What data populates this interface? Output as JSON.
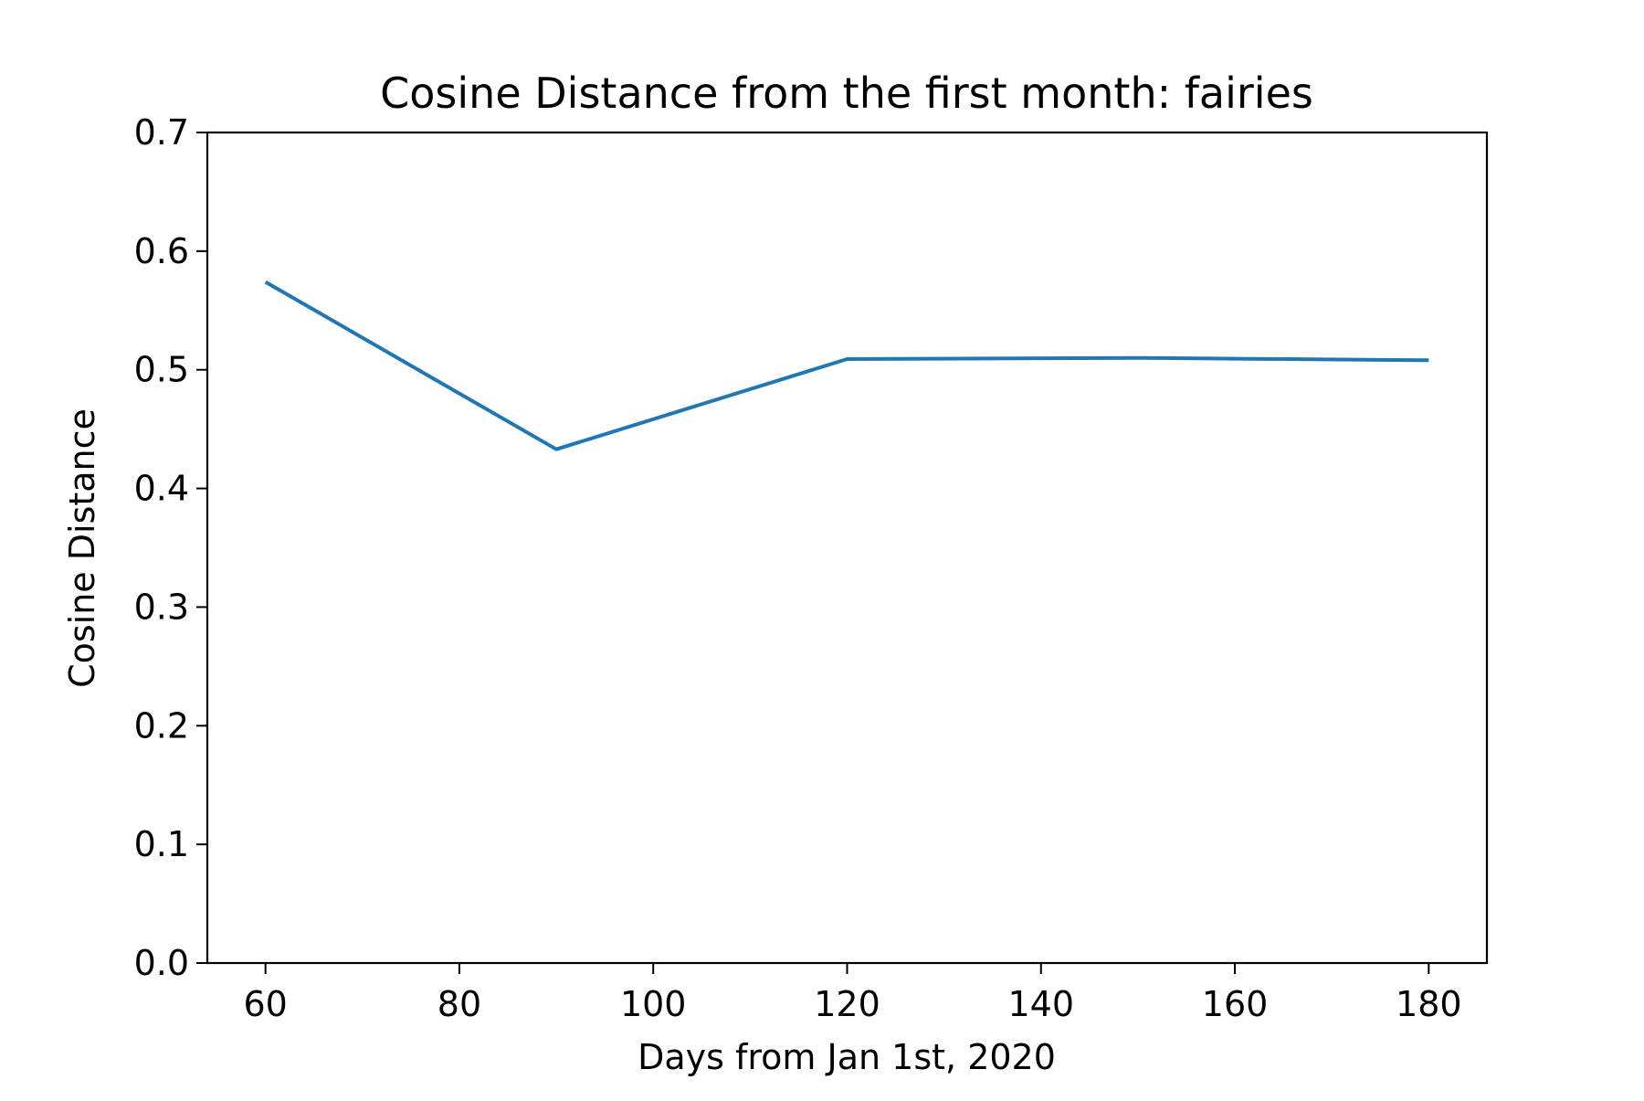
{
  "chart_data": {
    "type": "line",
    "title": "Cosine Distance from the first month: fairies",
    "xlabel": "Days from Jan 1st, 2020",
    "ylabel": "Cosine Distance",
    "x": [
      60,
      90,
      120,
      150,
      180
    ],
    "series": [
      {
        "values": [
          0.574,
          0.433,
          0.509,
          0.51,
          0.508
        ],
        "color": "#1f77b4"
      }
    ],
    "xlim": [
      54,
      186
    ],
    "ylim": [
      0.0,
      0.7
    ],
    "xticks": [
      60,
      80,
      100,
      120,
      140,
      160,
      180
    ],
    "xtick_labels": [
      "60",
      "80",
      "100",
      "120",
      "140",
      "160",
      "180"
    ],
    "yticks": [
      0.0,
      0.1,
      0.2,
      0.3,
      0.4,
      0.5,
      0.6,
      0.7
    ],
    "ytick_labels": [
      "0.0",
      "0.1",
      "0.2",
      "0.3",
      "0.4",
      "0.5",
      "0.6",
      "0.7"
    ],
    "grid": false,
    "legend": "none"
  }
}
